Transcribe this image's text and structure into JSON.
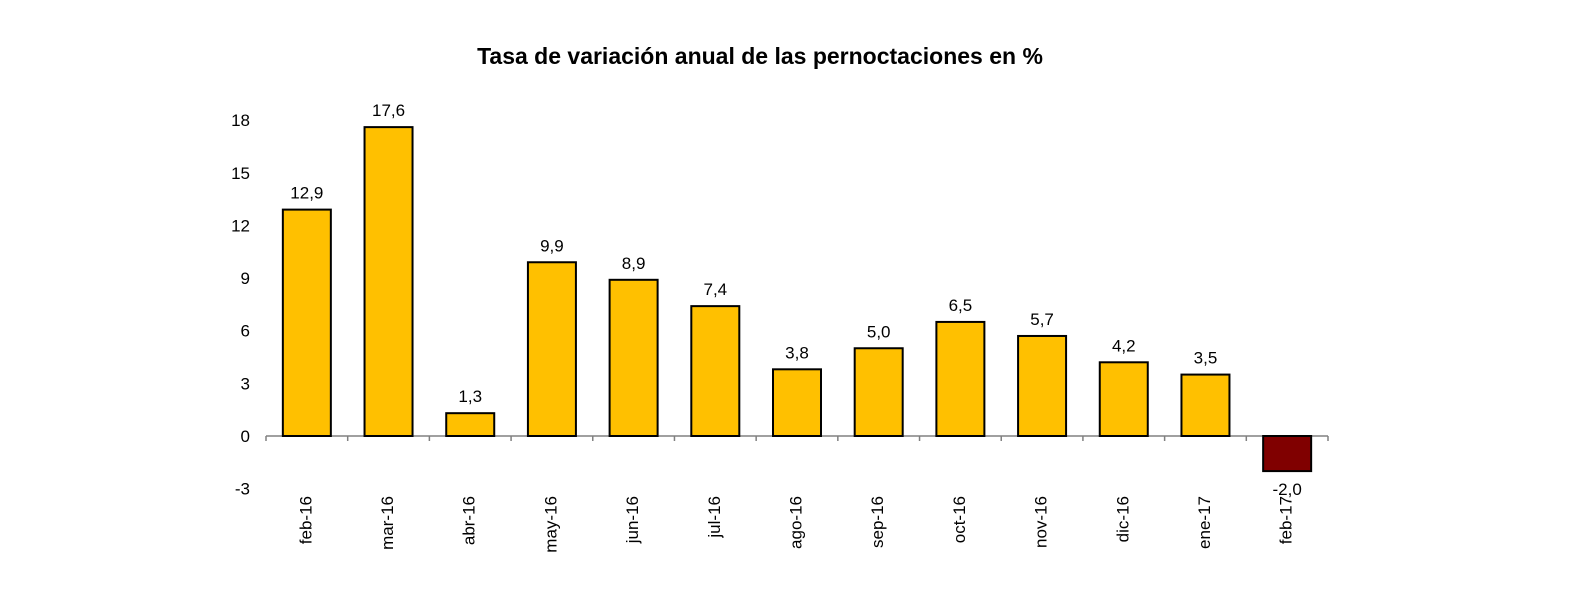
{
  "chart_data": {
    "type": "bar",
    "title": "Tasa de variación anual de las pernoctaciones en %",
    "categories": [
      "feb-16",
      "mar-16",
      "abr-16",
      "may-16",
      "jun-16",
      "jul-16",
      "ago-16",
      "sep-16",
      "oct-16",
      "nov-16",
      "dic-16",
      "ene-17",
      "feb-17"
    ],
    "values": [
      12.9,
      17.6,
      1.3,
      9.9,
      8.9,
      7.4,
      3.8,
      5.0,
      6.5,
      5.7,
      4.2,
      3.5,
      -2.0
    ],
    "data_labels": [
      "12,9",
      "17,6",
      "1,3",
      "9,9",
      "8,9",
      "7,4",
      "3,8",
      "5,0",
      "6,5",
      "5,7",
      "4,2",
      "3,5",
      "-2,0"
    ],
    "y_ticks": [
      -3,
      0,
      3,
      6,
      9,
      12,
      15,
      18
    ],
    "y_tick_labels": [
      "-3",
      "0",
      "3",
      "6",
      "9",
      "12",
      "15",
      "18"
    ],
    "ylim": [
      -3,
      18
    ],
    "xlabel": "",
    "ylabel": "",
    "grid": false,
    "colors": {
      "positive": "#FFC000",
      "negative": "#800000",
      "outline": "#000000",
      "axis": "#808080"
    }
  }
}
